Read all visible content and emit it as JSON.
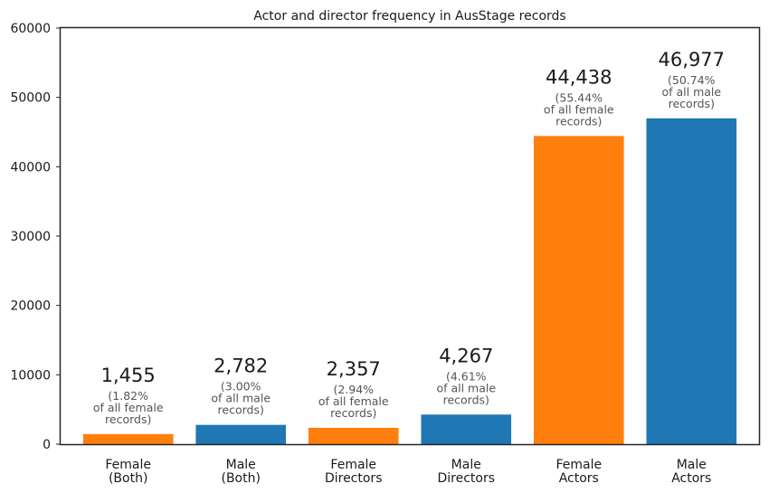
{
  "chart_data": {
    "type": "bar",
    "title": "Actor and director frequency in AusStage records",
    "xlabel": "",
    "ylabel": "",
    "ylim": [
      0,
      60000
    ],
    "yticks": [
      "0",
      "10000",
      "20000",
      "30000",
      "40000",
      "50000",
      "60000"
    ],
    "grid": false,
    "categories": [
      {
        "line1": "Female",
        "line2": "(Both)"
      },
      {
        "line1": "Male",
        "line2": "(Both)"
      },
      {
        "line1": "Female",
        "line2": "Directors"
      },
      {
        "line1": "Male",
        "line2": "Directors"
      },
      {
        "line1": "Female",
        "line2": "Actors"
      },
      {
        "line1": "Male",
        "line2": "Actors"
      }
    ],
    "values": [
      1455,
      2782,
      2357,
      4267,
      44438,
      46977
    ],
    "colors": [
      "#ff7f0e",
      "#1f77b4",
      "#ff7f0e",
      "#1f77b4",
      "#ff7f0e",
      "#1f77b4"
    ],
    "labels": [
      {
        "count": "1,455",
        "pct_lines": [
          "(1.82%",
          "of all female",
          "records)"
        ]
      },
      {
        "count": "2,782",
        "pct_lines": [
          "(3.00%",
          "of all male",
          "records)"
        ]
      },
      {
        "count": "2,357",
        "pct_lines": [
          "(2.94%",
          "of all female",
          "records)"
        ]
      },
      {
        "count": "4,267",
        "pct_lines": [
          "(4.61%",
          "of all male",
          "records)"
        ]
      },
      {
        "count": "44,438",
        "pct_lines": [
          "(55.44%",
          "of all female",
          "records)"
        ]
      },
      {
        "count": "46,977",
        "pct_lines": [
          "(50.74%",
          "of all male",
          "records)"
        ]
      }
    ]
  }
}
